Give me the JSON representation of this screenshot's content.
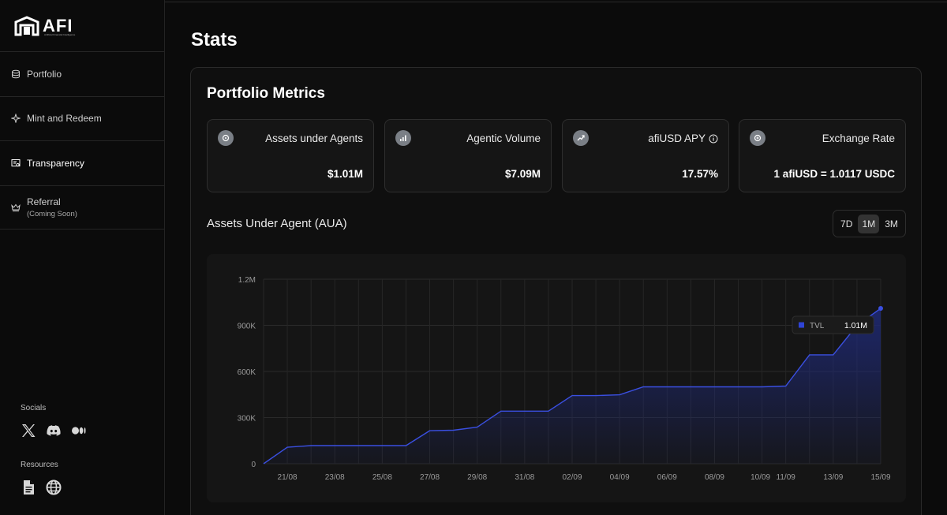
{
  "brand": {
    "name": "AFI",
    "tagline": "Artificial Financial Intelligence"
  },
  "sidebar": {
    "items": [
      {
        "label": "Portfolio",
        "sub": ""
      },
      {
        "label": "Mint and Redeem",
        "sub": ""
      },
      {
        "label": "Transparency",
        "sub": ""
      },
      {
        "label": "Referral",
        "sub": "(Coming Soon)"
      }
    ],
    "socials_title": "Socials",
    "resources_title": "Resources"
  },
  "page": {
    "title": "Stats"
  },
  "portfolio": {
    "title": "Portfolio Metrics",
    "metrics": [
      {
        "label": "Assets under Agents",
        "value": "$1.01M"
      },
      {
        "label": "Agentic Volume",
        "value": "$7.09M"
      },
      {
        "label": "afiUSD APY",
        "value": "17.57%"
      },
      {
        "label": "Exchange Rate",
        "value": "1 afiUSD = 1.0117 USDC"
      }
    ]
  },
  "chart_section": {
    "title": "Assets Under Agent (AUA)",
    "ranges": [
      "7D",
      "1M",
      "3M"
    ],
    "active_range": "1M"
  },
  "colors": {
    "accent": "#2f44d6",
    "line": "#3a4fe0",
    "fill_top": "#1f2a78"
  },
  "chart_data": {
    "type": "area",
    "series": [
      {
        "name": "TVL",
        "color": "#2f44d6"
      }
    ],
    "x_ticks": [
      "21/08",
      "23/08",
      "25/08",
      "27/08",
      "29/08",
      "31/08",
      "02/09",
      "04/09",
      "06/09",
      "08/09",
      "10/09",
      "11/09",
      "13/09",
      "15/09"
    ],
    "y_ticks": [
      "0",
      "300K",
      "600K",
      "900K",
      "1.2M"
    ],
    "ylim": [
      0,
      1200000
    ],
    "x_range": [
      0,
      26
    ],
    "points": [
      [
        0,
        0
      ],
      [
        1,
        107000
      ],
      [
        2,
        118000
      ],
      [
        3,
        118000
      ],
      [
        4,
        118000
      ],
      [
        5,
        118000
      ],
      [
        6,
        118000
      ],
      [
        7,
        215000
      ],
      [
        8,
        218000
      ],
      [
        9,
        238000
      ],
      [
        10,
        342000
      ],
      [
        11,
        342000
      ],
      [
        12,
        342000
      ],
      [
        13,
        443000
      ],
      [
        14,
        443000
      ],
      [
        15,
        448000
      ],
      [
        16,
        500000
      ],
      [
        17,
        500000
      ],
      [
        18,
        500000
      ],
      [
        19,
        500000
      ],
      [
        20,
        500000
      ],
      [
        21,
        500000
      ],
      [
        22,
        505000
      ],
      [
        23,
        708000
      ],
      [
        24,
        708000
      ],
      [
        25,
        900000
      ],
      [
        26,
        1010000
      ]
    ],
    "tooltip": {
      "label": "TVL",
      "value": "1.01M"
    }
  }
}
